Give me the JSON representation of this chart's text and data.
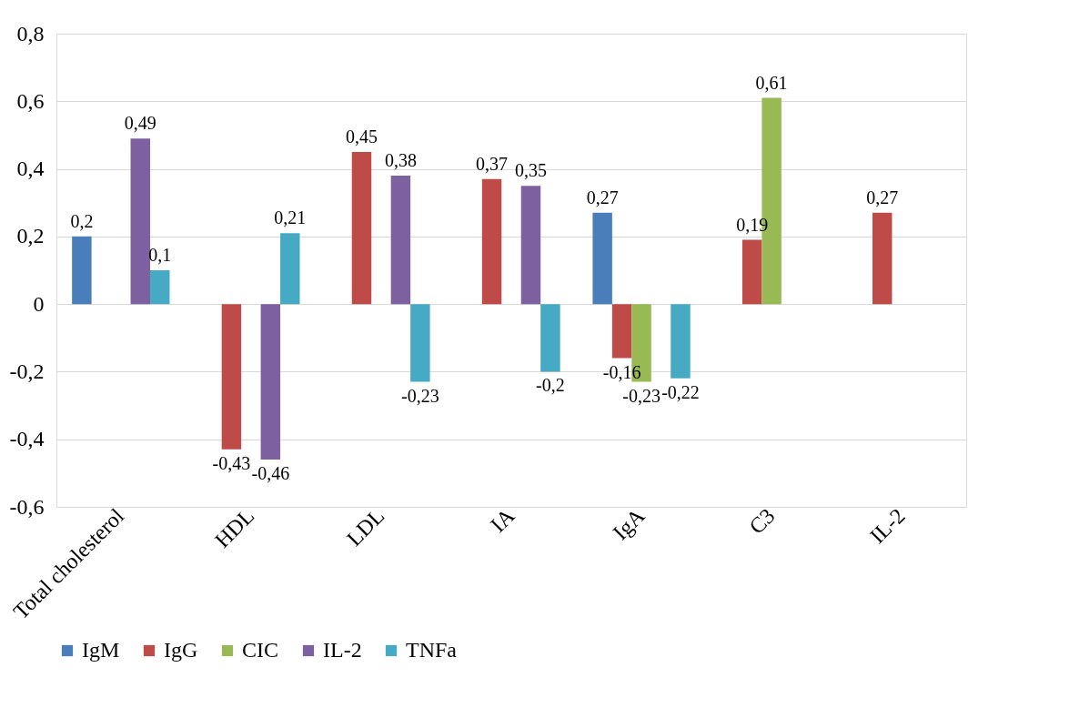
{
  "chart_data": {
    "type": "bar",
    "categories": [
      "Total cholesterol",
      "HDL",
      "LDL",
      "IA",
      "IgA",
      "C3",
      "IL-2"
    ],
    "series": [
      {
        "name": "IgM",
        "color": "#4a7ebb",
        "values": [
          0.2,
          null,
          null,
          null,
          0.27,
          null,
          null
        ],
        "value_labels": [
          "0,2",
          null,
          null,
          null,
          "0,27",
          null,
          null
        ]
      },
      {
        "name": "IgG",
        "color": "#be4b48",
        "values": [
          null,
          -0.43,
          0.45,
          0.37,
          -0.16,
          0.19,
          0.27
        ],
        "value_labels": [
          null,
          "-0,43",
          "0,45",
          "0,37",
          "-0,16",
          "0,19",
          "0,27"
        ]
      },
      {
        "name": "CIC",
        "color": "#98b954",
        "values": [
          null,
          null,
          null,
          null,
          -0.23,
          0.61,
          null
        ],
        "value_labels": [
          null,
          null,
          null,
          null,
          "-0,23",
          "0,61",
          null
        ]
      },
      {
        "name": "IL-2",
        "color": "#7d60a0",
        "values": [
          0.49,
          -0.46,
          0.38,
          0.35,
          null,
          null,
          null
        ],
        "value_labels": [
          "0,49",
          "-0,46",
          "0,38",
          "0,35",
          null,
          null,
          null
        ]
      },
      {
        "name": "TNFa",
        "color": "#46aac5",
        "values": [
          0.1,
          0.21,
          -0.23,
          -0.2,
          -0.22,
          null,
          null
        ],
        "value_labels": [
          "0,1",
          "0,21",
          "-0,23",
          "-0,2",
          "-0,22",
          null,
          null
        ]
      }
    ],
    "ylim": [
      -0.6,
      0.8
    ],
    "yticks": [
      {
        "value": -0.6,
        "label": "-0,6"
      },
      {
        "value": -0.4,
        "label": "-0,4"
      },
      {
        "value": -0.2,
        "label": "-0,2"
      },
      0,
      {
        "value": 0.2,
        "label": "0,2"
      },
      {
        "value": 0.4,
        "label": "0,4"
      },
      {
        "value": 0.6,
        "label": "0,6"
      },
      {
        "value": 0.8,
        "label": "0,8"
      }
    ],
    "grid": "y",
    "legend": "bottom"
  }
}
